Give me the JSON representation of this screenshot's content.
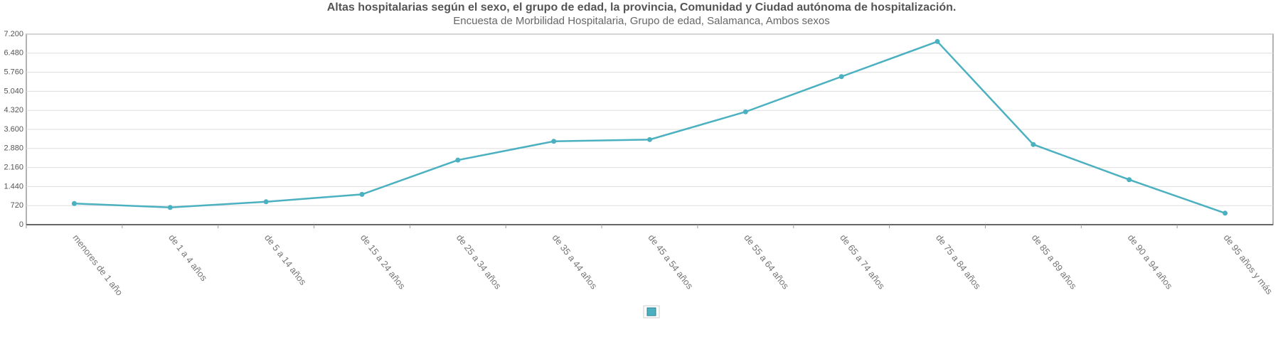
{
  "chart_data": {
    "type": "line",
    "title": "Altas hospitalarias según el sexo, el grupo de edad, la provincia, Comunidad y Ciudad autónoma de hospitalización.",
    "subtitle": "Encuesta de Morbilidad Hospitalaria, Grupo de edad, Salamanca, Ambos sexos",
    "categories": [
      "menores de 1 año",
      "de 1 a 4 años",
      "de 5 a 14 años",
      "de 15 a 24 años",
      "de 25 a 34 años",
      "de 35 a 44 años",
      "de 45 a 54 años",
      "de 55 a 64 años",
      "de 65 a 74 años",
      "de 75 a 84 años",
      "de 85 a 89 años",
      "de 90 a 94 años",
      "de 95 años y más"
    ],
    "series": [
      {
        "color": "#4bb0c0",
        "values": [
          800,
          650,
          865,
          1145,
          2440,
          3150,
          3215,
          4265,
          5595,
          6920,
          3030,
          1700,
          435
        ]
      }
    ],
    "ylim": [
      0,
      7200
    ],
    "yticks": [
      0,
      720,
      {
        "value": 1440,
        "label": "1.440"
      },
      {
        "value": 2160,
        "label": "2.160"
      },
      {
        "value": 2880,
        "label": "2.880"
      },
      {
        "value": 3600,
        "label": "3.600"
      },
      {
        "value": 4320,
        "label": "4.320"
      },
      {
        "value": 5040,
        "label": "5.040"
      },
      {
        "value": 5760,
        "label": "5.760"
      },
      {
        "value": 6480,
        "label": "6.480"
      },
      {
        "value": 7200,
        "label": "7.200"
      }
    ],
    "grid": true
  }
}
